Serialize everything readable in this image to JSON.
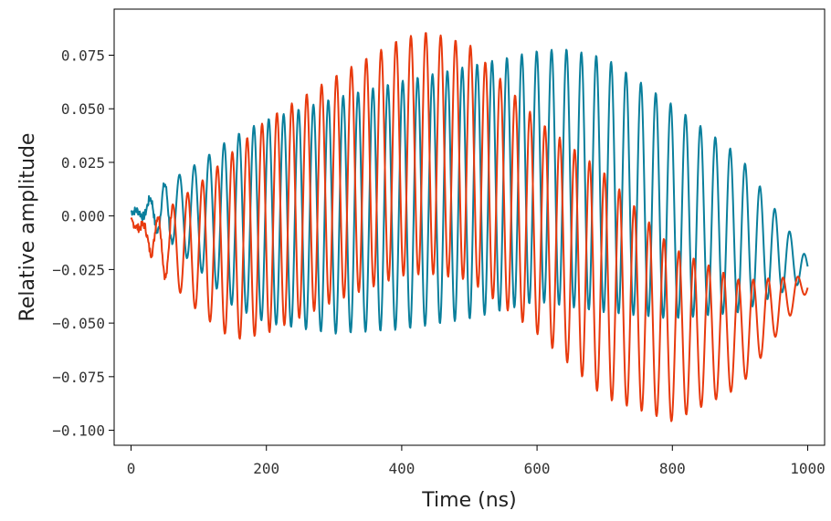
{
  "chart_data": {
    "type": "line",
    "title": "",
    "xlabel": "Time (ns)",
    "ylabel": "Relative amplitude",
    "xlim": [
      -25,
      1025
    ],
    "ylim": [
      -0.107,
      0.0965
    ],
    "xticks": [
      0,
      200,
      400,
      600,
      800,
      1000
    ],
    "xtick_labels": [
      "0",
      "200",
      "400",
      "600",
      "800",
      "1000"
    ],
    "yticks": [
      0.075,
      0.05,
      0.025,
      0.0,
      -0.025,
      -0.05,
      -0.075,
      -0.1
    ],
    "ytick_labels": [
      "0.075",
      "0.050",
      "0.025",
      "0.000",
      "−0.025",
      "−0.050",
      "−0.075",
      "−0.100"
    ],
    "grid": false,
    "legend": "none",
    "x_range": [
      0,
      1000
    ],
    "series": [
      {
        "color": "#0a7f9c",
        "oscillation_period_ns": 22,
        "envelope_points_t": [
          0,
          50,
          100,
          150,
          200,
          300,
          400,
          500,
          600,
          640,
          700,
          800,
          900,
          1000
        ],
        "upper_envelope": [
          0.003,
          0.015,
          0.025,
          0.037,
          0.045,
          0.055,
          0.063,
          0.07,
          0.077,
          0.078,
          0.074,
          0.052,
          0.028,
          -0.02
        ],
        "lower_envelope": [
          0.001,
          -0.01,
          -0.025,
          -0.042,
          -0.05,
          -0.055,
          -0.053,
          -0.048,
          -0.04,
          -0.042,
          -0.045,
          -0.048,
          -0.045,
          -0.03
        ]
      },
      {
        "color": "#e83a0e",
        "oscillation_period_ns": 22,
        "envelope_points_t": [
          0,
          40,
          100,
          150,
          200,
          300,
          400,
          440,
          500,
          600,
          700,
          800,
          900,
          1000
        ],
        "upper_envelope": [
          -0.002,
          0.0,
          0.015,
          0.03,
          0.045,
          0.065,
          0.083,
          0.086,
          0.08,
          0.045,
          0.02,
          -0.015,
          -0.03,
          -0.028
        ],
        "lower_envelope": [
          -0.003,
          -0.025,
          -0.045,
          -0.058,
          -0.055,
          -0.04,
          -0.028,
          -0.027,
          -0.03,
          -0.055,
          -0.085,
          -0.096,
          -0.08,
          -0.035
        ]
      }
    ]
  }
}
